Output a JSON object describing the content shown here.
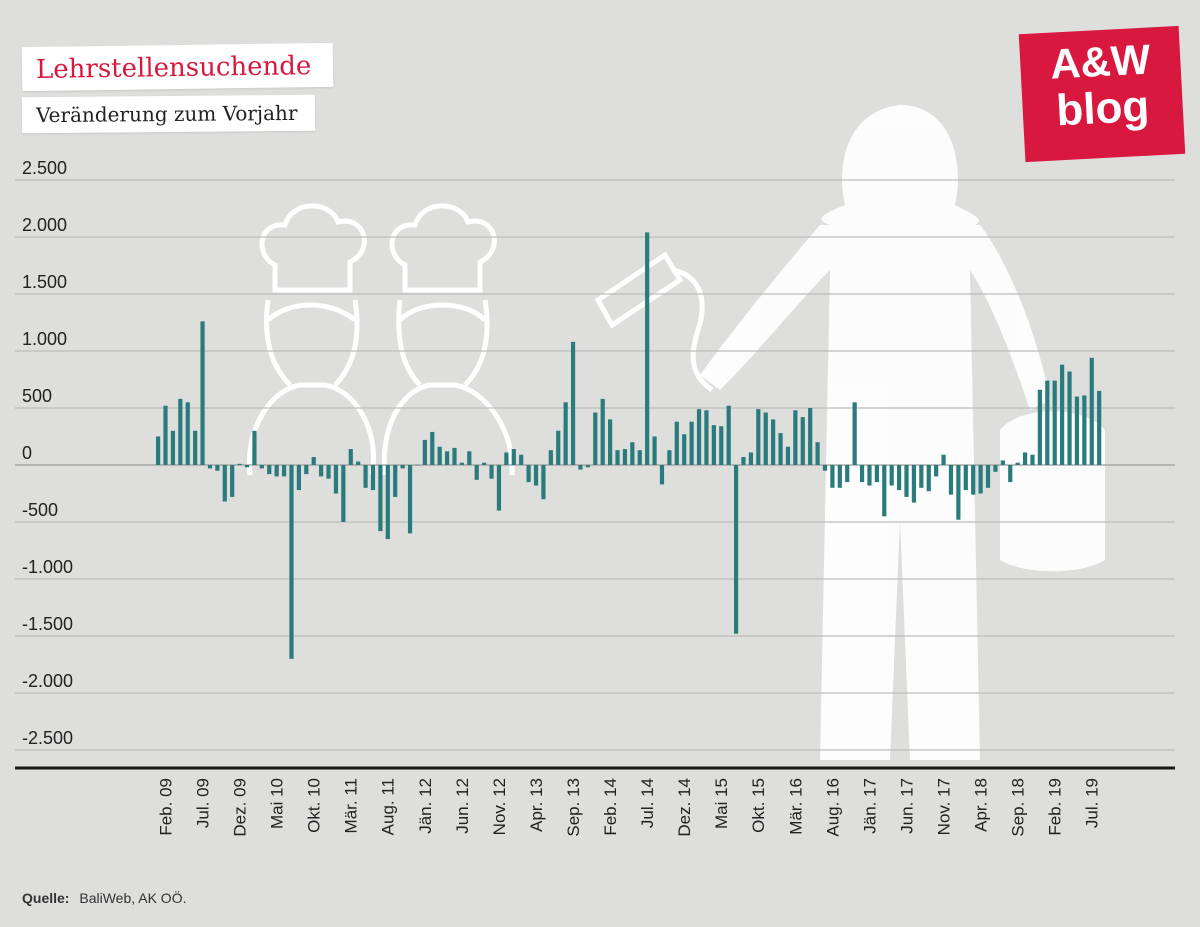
{
  "title": "Lehrstellensuchende",
  "subtitle": "Veränderung zum Vorjahr",
  "logo": {
    "line1": "A&W",
    "line2": "blog"
  },
  "source": {
    "label": "Quelle:",
    "text": "BaliWeb, AK OÖ."
  },
  "colors": {
    "bar": "#2a7b7c",
    "accent": "#d9183f",
    "background": "#dededd",
    "grid": "#bdbdbd"
  },
  "chart_data": {
    "type": "bar",
    "ylim": [
      -2500,
      2500
    ],
    "yticks": [
      2500,
      2000,
      1500,
      1000,
      500,
      0,
      -500,
      -1000,
      -1500,
      -2000,
      -2500
    ],
    "ytick_labels": [
      "2.500",
      "2.000",
      "1.500",
      "1.000",
      "500",
      "0",
      "-500",
      "-1.000",
      "-1.500",
      "-2.000",
      "-2.500"
    ],
    "grid": true,
    "start": "Jän. 09",
    "xtick_labels": [
      "Feb. 09",
      "Jul. 09",
      "Dez. 09",
      "Mai 10",
      "Okt. 10",
      "Mär. 11",
      "Aug. 11",
      "Jän. 12",
      "Jun. 12",
      "Nov. 12",
      "Apr. 13",
      "Sep. 13",
      "Feb. 14",
      "Jul. 14",
      "Dez. 14",
      "Mai 15",
      "Okt. 15",
      "Mär. 16",
      "Aug. 16",
      "Jän. 17",
      "Jun. 17",
      "Nov. 17",
      "Apr. 18",
      "Sep. 18",
      "Feb. 19",
      "Jul. 19"
    ],
    "values": [
      250,
      520,
      300,
      580,
      550,
      300,
      1260,
      -30,
      -50,
      -320,
      -280,
      10,
      -20,
      300,
      -30,
      -80,
      -100,
      -100,
      -1700,
      -220,
      -80,
      70,
      -100,
      -120,
      -250,
      -500,
      140,
      30,
      -200,
      -220,
      -580,
      -650,
      -280,
      -30,
      -600,
      0,
      220,
      290,
      160,
      120,
      150,
      20,
      120,
      -130,
      20,
      -120,
      -400,
      110,
      140,
      90,
      -150,
      -180,
      -300,
      130,
      300,
      550,
      1080,
      -40,
      -20,
      460,
      580,
      400,
      130,
      140,
      200,
      130,
      2040,
      250,
      -170,
      130,
      380,
      270,
      380,
      490,
      480,
      350,
      340,
      520,
      -1480,
      70,
      110,
      490,
      460,
      400,
      280,
      160,
      480,
      420,
      500,
      200,
      -50,
      -200,
      -200,
      -150,
      550,
      -150,
      -180,
      -150,
      -450,
      -180,
      -220,
      -280,
      -330,
      -200,
      -230,
      -100,
      90,
      -260,
      -480,
      -220,
      -260,
      -250,
      -200,
      -60,
      40,
      -150,
      20,
      110,
      90,
      660,
      740,
      740,
      880,
      820,
      600,
      610,
      940,
      650
    ]
  }
}
